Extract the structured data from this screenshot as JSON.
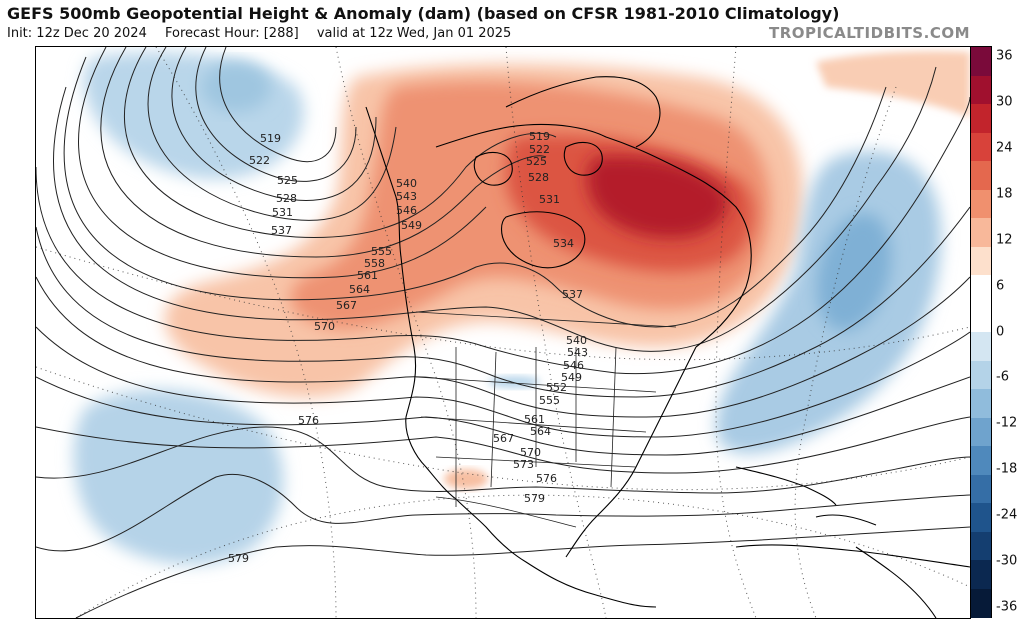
{
  "header": {
    "title": "GEFS 500mb Geopotential Height & Anomaly (dam) (based on CFSR 1981-2010 Climatology)",
    "init": "Init: 12z Dec 20 2024",
    "forecast_hour": "Forecast Hour: [288]",
    "valid": "valid at 12z Wed, Jan 01 2025",
    "source": "TROPICALTIDBITS.COM"
  },
  "colorbar": {
    "ticks": [
      "36",
      "30",
      "24",
      "18",
      "12",
      "6",
      "0",
      "-6",
      "-12",
      "-18",
      "-24",
      "-30",
      "-36"
    ],
    "colors": [
      "#7a0a3a",
      "#a0102e",
      "#c2242c",
      "#d8423a",
      "#e4684e",
      "#f0906e",
      "#f8b89a",
      "#fde0cc",
      "#ffffff",
      "#ffffff",
      "#d4e6f2",
      "#b4d3e8",
      "#90bcdc",
      "#6fa3cd",
      "#4f89bc",
      "#356ea6",
      "#1f548c",
      "#143e70",
      "#0b2850",
      "#061a38"
    ]
  },
  "contour_labels": [
    "519",
    "522",
    "525",
    "528",
    "531",
    "537",
    "540",
    "543",
    "546",
    "549",
    "555",
    "558",
    "561",
    "564",
    "567",
    "570",
    "576",
    "579",
    "519",
    "522",
    "525",
    "528",
    "531",
    "534",
    "537",
    "540",
    "543",
    "546",
    "549",
    "552",
    "555",
    "561",
    "564",
    "567",
    "570",
    "573",
    "576",
    "579"
  ]
}
